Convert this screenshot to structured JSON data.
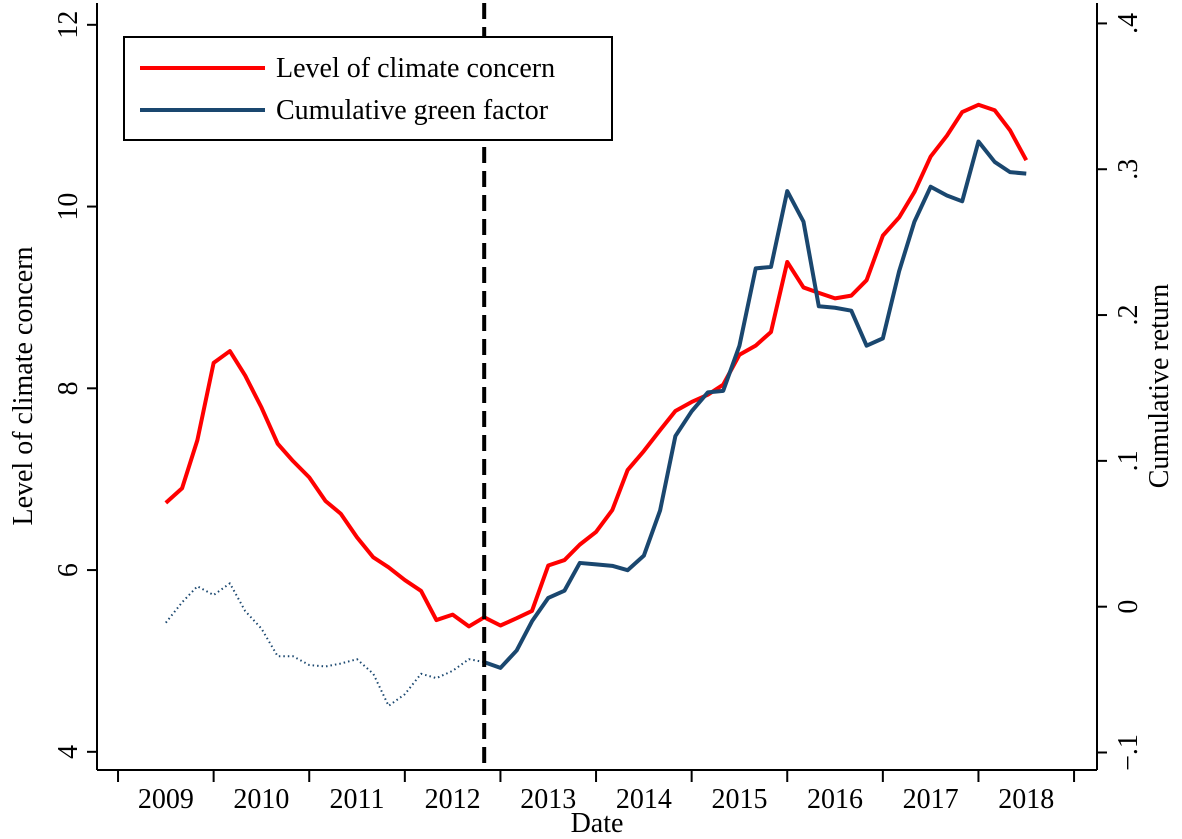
{
  "chart_data": {
    "type": "line",
    "x_label": "Date",
    "y_label": "Level of climate concern",
    "y2_label": "Cumulative return",
    "x": [
      2009.5,
      2009.67,
      2009.83,
      2010,
      2010.17,
      2010.33,
      2010.5,
      2010.67,
      2010.83,
      2011,
      2011.17,
      2011.33,
      2011.5,
      2011.67,
      2011.83,
      2012,
      2012.17,
      2012.33,
      2012.5,
      2012.67,
      2012.83,
      2013,
      2013.17,
      2013.33,
      2013.5,
      2013.67,
      2013.83,
      2014,
      2014.17,
      2014.33,
      2014.5,
      2014.67,
      2014.83,
      2015,
      2015.17,
      2015.33,
      2015.5,
      2015.67,
      2015.83,
      2016,
      2016.17,
      2016.33,
      2016.5,
      2016.67,
      2016.83,
      2017,
      2017.17,
      2017.33,
      2017.5,
      2017.67,
      2017.83,
      2018,
      2018.17,
      2018.33,
      2018.5
    ],
    "series": [
      {
        "name": "Level of climate concern",
        "color": "#ff0000",
        "values": [
          6.74,
          6.9,
          7.43,
          8.28,
          8.41,
          8.14,
          7.79,
          7.39,
          7.2,
          7.02,
          6.76,
          6.62,
          6.36,
          6.14,
          6.03,
          5.89,
          5.77,
          5.45,
          5.51,
          5.38,
          5.48,
          5.39,
          5.47,
          5.55,
          6.05,
          6.11,
          6.28,
          6.42,
          6.66,
          7.1,
          7.31,
          7.54,
          7.75,
          7.85,
          7.93,
          8.04,
          8.37,
          8.47,
          8.62,
          9.39,
          9.11,
          9.05,
          8.99,
          9.02,
          9.19,
          9.68,
          9.88,
          10.16,
          10.55,
          10.78,
          11.04,
          11.12,
          11.06,
          10.84,
          10.51
        ]
      },
      {
        "name": "Cumulative green factor",
        "color": "#1a476f",
        "axis": "y2",
        "values": [
          -0.011,
          0.003,
          0.014,
          0.008,
          0.016,
          -0.003,
          -0.015,
          -0.034,
          -0.034,
          -0.04,
          -0.041,
          -0.039,
          -0.036,
          -0.046,
          -0.068,
          -0.06,
          -0.046,
          -0.049,
          -0.044,
          -0.036,
          -0.038,
          -0.042,
          -0.03,
          -0.01,
          0.006,
          0.011,
          0.03,
          0.029,
          0.028,
          0.025,
          0.035,
          0.066,
          0.117,
          0.134,
          0.147,
          0.148,
          0.179,
          0.232,
          0.233,
          0.285,
          0.264,
          0.206,
          0.205,
          0.203,
          0.179,
          0.184,
          0.23,
          0.264,
          0.288,
          0.282,
          0.278,
          0.319,
          0.305,
          0.298,
          0.297
        ]
      }
    ],
    "vline": 2012.83,
    "xlim": [
      2008.78,
      2019.24
    ],
    "xticks": [
      {
        "value": 2009.5,
        "label": "2009"
      },
      {
        "value": 2010.5,
        "label": "2010"
      },
      {
        "value": 2011.5,
        "label": "2011"
      },
      {
        "value": 2012.5,
        "label": "2012"
      },
      {
        "value": 2013.5,
        "label": "2013"
      },
      {
        "value": 2014.5,
        "label": "2014"
      },
      {
        "value": 2015.5,
        "label": "2015"
      },
      {
        "value": 2016.5,
        "label": "2016"
      },
      {
        "value": 2017.5,
        "label": "2017"
      },
      {
        "value": 2018.5,
        "label": "2018"
      }
    ],
    "xtick_marks": [
      2009,
      2010,
      2011,
      2012,
      2013,
      2014,
      2015,
      2016,
      2017,
      2018,
      2019
    ],
    "ylim": [
      3.8,
      12.24
    ],
    "yticks": [
      4,
      6,
      8,
      10,
      12
    ],
    "y2lim": [
      -0.112,
      0.414
    ],
    "y2ticks": [
      {
        "value": -0.1,
        "label": "−.1"
      },
      0,
      {
        "value": 0.1,
        "label": ".1"
      },
      {
        "value": 0.2,
        "label": ".2"
      },
      {
        "value": 0.3,
        "label": ".3"
      },
      {
        "value": 0.4,
        "label": ".4"
      }
    ],
    "legend": "upper left"
  }
}
